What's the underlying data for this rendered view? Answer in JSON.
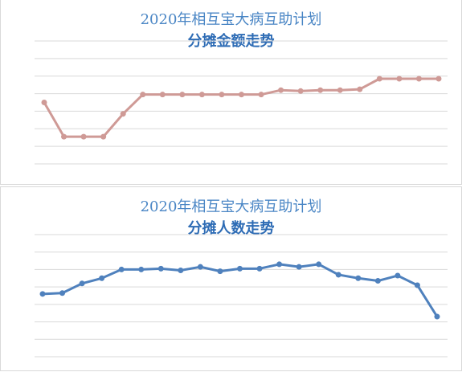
{
  "chart_data": [
    {
      "type": "line",
      "title": "2020年相互宝大病互助计划",
      "subtitle": "分摊金额走势",
      "xlabel": "",
      "ylabel": "",
      "ylim": [
        0,
        7
      ],
      "grid": true,
      "legend": "none",
      "color": "#cf9a96",
      "x": [
        1,
        2,
        3,
        4,
        5,
        6,
        7,
        8,
        9,
        10,
        11,
        12,
        13,
        14,
        15,
        16,
        17,
        18,
        19,
        20,
        21
      ],
      "values": [
        3.5,
        1.55,
        1.55,
        1.55,
        2.85,
        3.95,
        3.95,
        3.95,
        3.95,
        3.95,
        3.95,
        3.95,
        4.2,
        4.15,
        4.2,
        4.2,
        4.25,
        4.85,
        4.85,
        4.85,
        4.85
      ]
    },
    {
      "type": "line",
      "title": "2020年相互宝大病互助计划",
      "subtitle": "分摊人数走势",
      "xlabel": "",
      "ylabel": "",
      "ylim": [
        0,
        7
      ],
      "grid": true,
      "legend": "none",
      "color": "#4f81bd",
      "x": [
        1,
        2,
        3,
        4,
        5,
        6,
        7,
        8,
        9,
        10,
        11,
        12,
        13,
        14,
        15,
        16,
        17,
        18,
        19,
        20,
        21
      ],
      "values": [
        3.6,
        3.65,
        4.2,
        4.5,
        5.0,
        5.0,
        5.05,
        4.95,
        5.15,
        4.9,
        5.05,
        5.05,
        5.3,
        5.15,
        5.3,
        4.7,
        4.5,
        4.35,
        4.65,
        4.1,
        2.3
      ]
    }
  ]
}
